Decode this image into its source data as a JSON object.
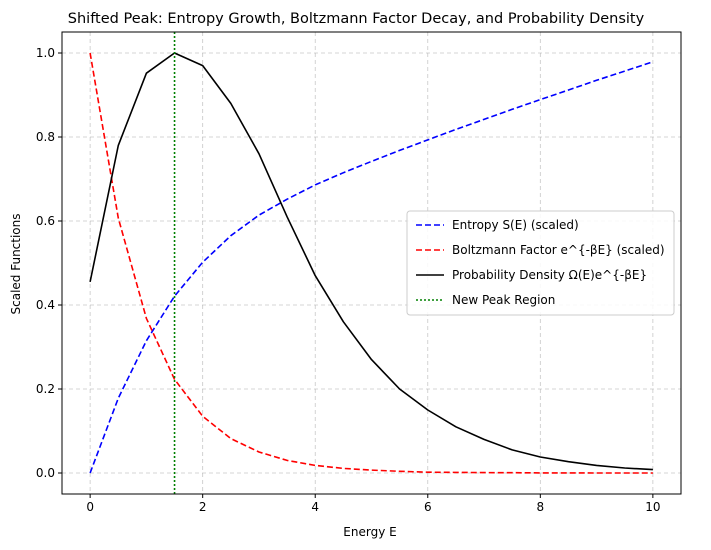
{
  "chart_data": {
    "type": "line",
    "title": "Shifted Peak: Entropy Growth, Boltzmann Factor Decay, and Probability Density",
    "xlabel": "Energy E",
    "ylabel": "Scaled Functions",
    "xlim": [
      -0.5,
      10.5
    ],
    "ylim": [
      -0.05,
      1.05
    ],
    "xticks": [
      0,
      2,
      4,
      6,
      8,
      10
    ],
    "xtick_labels": [
      "0",
      "2",
      "4",
      "6",
      "8",
      "10"
    ],
    "yticks": [
      0.0,
      0.2,
      0.4,
      0.6,
      0.8,
      1.0
    ],
    "ytick_labels": [
      "0.0",
      "0.2",
      "0.4",
      "0.6",
      "0.8",
      "1.0"
    ],
    "grid": true,
    "legend_position": "center-right",
    "x": [
      0,
      0.5,
      1,
      1.5,
      2,
      2.5,
      3,
      3.5,
      4,
      4.5,
      5,
      5.5,
      6,
      6.5,
      7,
      7.5,
      8,
      8.5,
      9,
      9.5,
      10
    ],
    "series": [
      {
        "name": "Entropy S(E) (scaled)",
        "color": "#0000ff",
        "style": "dashed",
        "values": [
          0.0,
          0.178,
          0.315,
          0.421,
          0.502,
          0.565,
          0.614,
          0.652,
          0.686,
          0.715,
          0.742,
          0.768,
          0.793,
          0.818,
          0.842,
          0.866,
          0.889,
          0.912,
          0.935,
          0.957,
          0.979
        ]
      },
      {
        "name": "Boltzmann Factor e^{-βE} (scaled)",
        "color": "#ff0000",
        "style": "dashed",
        "values": [
          1.0,
          0.607,
          0.368,
          0.223,
          0.135,
          0.082,
          0.05,
          0.03,
          0.018,
          0.011,
          0.007,
          0.004,
          0.002,
          0.0015,
          0.0009,
          0.0006,
          0.0003,
          0.0002,
          0.0001,
          0.0001,
          0.0
        ]
      },
      {
        "name": "Probability Density Ω(E)e^{-βE}",
        "color": "#000000",
        "style": "solid",
        "values": [
          0.455,
          0.78,
          0.952,
          1.0,
          0.97,
          0.88,
          0.76,
          0.61,
          0.47,
          0.36,
          0.27,
          0.2,
          0.15,
          0.11,
          0.08,
          0.055,
          0.038,
          0.027,
          0.018,
          0.012,
          0.008
        ]
      },
      {
        "name": "New Peak Region",
        "color": "#008000",
        "style": "dotted",
        "vline_x": 1.5
      }
    ]
  }
}
